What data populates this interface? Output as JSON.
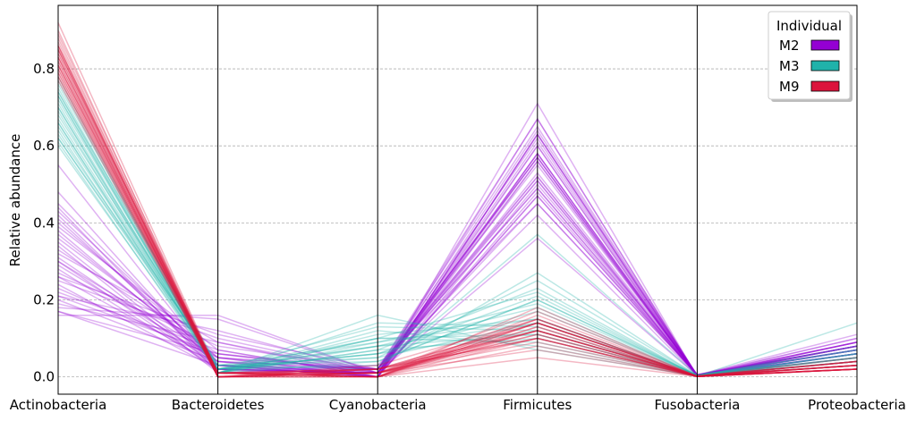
{
  "chart_data": {
    "type": "line",
    "subtype": "parallel-coordinates",
    "title": "",
    "xlabel": "",
    "ylabel": "Relative abundance",
    "categories": [
      "Actinobacteria",
      "Bacteroidetes",
      "Cyanobacteria",
      "Firmicutes",
      "Fusobacteria",
      "Proteobacteria"
    ],
    "y_ticks": [
      "0.0",
      "0.2",
      "0.4",
      "0.6",
      "0.8"
    ],
    "ylim": [
      -0.045,
      0.965
    ],
    "grid": "horizontal dashed",
    "legend": {
      "title": "Individual",
      "position": "top-right",
      "entries": [
        {
          "label": "M2",
          "color": "#9400d3"
        },
        {
          "label": "M3",
          "color": "#20b2aa"
        },
        {
          "label": "M9",
          "color": "#dc143c"
        }
      ]
    },
    "series": [
      {
        "name": "M2",
        "color": "#9400d3",
        "lines": [
          [
            0.45,
            0.03,
            0.01,
            0.45,
            0.005,
            0.06
          ],
          [
            0.42,
            0.02,
            0.02,
            0.49,
            0.003,
            0.05
          ],
          [
            0.4,
            0.05,
            0.0,
            0.5,
            0.005,
            0.05
          ],
          [
            0.38,
            0.03,
            0.01,
            0.52,
            0.002,
            0.06
          ],
          [
            0.37,
            0.04,
            0.02,
            0.51,
            0.004,
            0.06
          ],
          [
            0.35,
            0.02,
            0.0,
            0.56,
            0.003,
            0.07
          ],
          [
            0.33,
            0.06,
            0.01,
            0.53,
            0.006,
            0.07
          ],
          [
            0.31,
            0.03,
            0.02,
            0.57,
            0.002,
            0.07
          ],
          [
            0.3,
            0.05,
            0.0,
            0.58,
            0.004,
            0.06
          ],
          [
            0.28,
            0.02,
            0.01,
            0.61,
            0.003,
            0.08
          ],
          [
            0.27,
            0.08,
            0.02,
            0.55,
            0.005,
            0.08
          ],
          [
            0.26,
            0.03,
            0.0,
            0.63,
            0.002,
            0.08
          ],
          [
            0.25,
            0.1,
            0.01,
            0.56,
            0.004,
            0.08
          ],
          [
            0.23,
            0.05,
            0.02,
            0.62,
            0.003,
            0.08
          ],
          [
            0.22,
            0.07,
            0.0,
            0.63,
            0.005,
            0.08
          ],
          [
            0.21,
            0.12,
            0.01,
            0.58,
            0.002,
            0.08
          ],
          [
            0.2,
            0.04,
            0.02,
            0.65,
            0.004,
            0.09
          ],
          [
            0.19,
            0.09,
            0.0,
            0.63,
            0.003,
            0.09
          ],
          [
            0.18,
            0.15,
            0.01,
            0.57,
            0.005,
            0.09
          ],
          [
            0.17,
            0.06,
            0.02,
            0.67,
            0.002,
            0.09
          ],
          [
            0.17,
            0.03,
            0.0,
            0.71,
            0.001,
            0.09
          ],
          [
            0.16,
            0.16,
            0.01,
            0.58,
            0.004,
            0.1
          ],
          [
            0.48,
            0.02,
            0.01,
            0.42,
            0.003,
            0.07
          ],
          [
            0.44,
            0.01,
            0.03,
            0.45,
            0.006,
            0.07
          ],
          [
            0.39,
            0.07,
            0.0,
            0.47,
            0.004,
            0.07
          ],
          [
            0.34,
            0.01,
            0.02,
            0.57,
            0.002,
            0.06
          ],
          [
            0.32,
            0.09,
            0.01,
            0.51,
            0.005,
            0.07
          ],
          [
            0.29,
            0.04,
            0.0,
            0.6,
            0.003,
            0.07
          ],
          [
            0.24,
            0.02,
            0.01,
            0.67,
            0.002,
            0.06
          ],
          [
            0.36,
            0.05,
            0.02,
            0.49,
            0.004,
            0.08
          ],
          [
            0.41,
            0.03,
            0.0,
            0.48,
            0.003,
            0.08
          ],
          [
            0.21,
            0.06,
            0.01,
            0.64,
            0.004,
            0.1
          ],
          [
            0.26,
            0.11,
            0.02,
            0.52,
            0.005,
            0.11
          ],
          [
            0.3,
            0.02,
            0.01,
            0.6,
            0.002,
            0.08
          ],
          [
            0.55,
            0.02,
            0.01,
            0.36,
            0.003,
            0.06
          ],
          [
            0.43,
            0.04,
            0.0,
            0.47,
            0.004,
            0.06
          ]
        ]
      },
      {
        "name": "M3",
        "color": "#20b2aa",
        "lines": [
          [
            0.78,
            0.01,
            0.07,
            0.1,
            0.002,
            0.03
          ],
          [
            0.76,
            0.02,
            0.1,
            0.09,
            0.003,
            0.04
          ],
          [
            0.75,
            0.01,
            0.12,
            0.08,
            0.002,
            0.03
          ],
          [
            0.74,
            0.03,
            0.05,
            0.14,
            0.004,
            0.04
          ],
          [
            0.73,
            0.01,
            0.16,
            0.07,
            0.002,
            0.03
          ],
          [
            0.72,
            0.02,
            0.08,
            0.14,
            0.003,
            0.04
          ],
          [
            0.71,
            0.01,
            0.09,
            0.15,
            0.002,
            0.04
          ],
          [
            0.7,
            0.02,
            0.06,
            0.17,
            0.003,
            0.05
          ],
          [
            0.69,
            0.01,
            0.11,
            0.15,
            0.002,
            0.04
          ],
          [
            0.68,
            0.03,
            0.04,
            0.2,
            0.004,
            0.05
          ],
          [
            0.67,
            0.02,
            0.08,
            0.18,
            0.003,
            0.05
          ],
          [
            0.66,
            0.01,
            0.14,
            0.13,
            0.002,
            0.06
          ],
          [
            0.65,
            0.02,
            0.06,
            0.21,
            0.003,
            0.06
          ],
          [
            0.64,
            0.01,
            0.07,
            0.23,
            0.002,
            0.05
          ],
          [
            0.63,
            0.03,
            0.09,
            0.19,
            0.004,
            0.07
          ],
          [
            0.62,
            0.02,
            0.03,
            0.27,
            0.003,
            0.06
          ],
          [
            0.61,
            0.01,
            0.1,
            0.22,
            0.002,
            0.06
          ],
          [
            0.6,
            0.02,
            0.05,
            0.25,
            0.003,
            0.08
          ],
          [
            0.77,
            0.01,
            0.08,
            0.11,
            0.002,
            0.14
          ],
          [
            0.73,
            0.02,
            0.06,
            0.12,
            0.003,
            0.07
          ],
          [
            0.7,
            0.01,
            0.04,
            0.2,
            0.002,
            0.05
          ],
          [
            0.66,
            0.02,
            0.13,
            0.12,
            0.003,
            0.07
          ],
          [
            0.62,
            0.03,
            0.02,
            0.37,
            0.004,
            0.05
          ],
          [
            0.74,
            0.01,
            0.1,
            0.11,
            0.002,
            0.04
          ]
        ]
      },
      {
        "name": "M9",
        "color": "#dc143c",
        "lines": [
          [
            0.92,
            0.01,
            0.0,
            0.05,
            0.001,
            0.02
          ],
          [
            0.9,
            0.0,
            0.01,
            0.07,
            0.002,
            0.02
          ],
          [
            0.89,
            0.01,
            0.0,
            0.08,
            0.001,
            0.02
          ],
          [
            0.88,
            0.0,
            0.01,
            0.09,
            0.002,
            0.02
          ],
          [
            0.87,
            0.01,
            0.0,
            0.1,
            0.001,
            0.02
          ],
          [
            0.86,
            0.0,
            0.02,
            0.1,
            0.002,
            0.02
          ],
          [
            0.86,
            0.01,
            0.01,
            0.1,
            0.001,
            0.02
          ],
          [
            0.85,
            0.0,
            0.0,
            0.12,
            0.002,
            0.03
          ],
          [
            0.85,
            0.01,
            0.02,
            0.1,
            0.001,
            0.02
          ],
          [
            0.84,
            0.0,
            0.01,
            0.12,
            0.002,
            0.03
          ],
          [
            0.84,
            0.01,
            0.0,
            0.13,
            0.001,
            0.02
          ],
          [
            0.83,
            0.0,
            0.02,
            0.12,
            0.002,
            0.03
          ],
          [
            0.83,
            0.01,
            0.01,
            0.13,
            0.001,
            0.02
          ],
          [
            0.82,
            0.0,
            0.0,
            0.14,
            0.002,
            0.03
          ],
          [
            0.82,
            0.01,
            0.02,
            0.12,
            0.001,
            0.03
          ],
          [
            0.81,
            0.0,
            0.01,
            0.14,
            0.002,
            0.03
          ],
          [
            0.81,
            0.01,
            0.0,
            0.15,
            0.001,
            0.03
          ],
          [
            0.8,
            0.0,
            0.02,
            0.14,
            0.002,
            0.04
          ],
          [
            0.8,
            0.01,
            0.01,
            0.15,
            0.001,
            0.03
          ],
          [
            0.79,
            0.0,
            0.0,
            0.16,
            0.002,
            0.04
          ],
          [
            0.79,
            0.01,
            0.02,
            0.14,
            0.001,
            0.04
          ],
          [
            0.78,
            0.0,
            0.01,
            0.17,
            0.002,
            0.04
          ],
          [
            0.78,
            0.01,
            0.0,
            0.18,
            0.001,
            0.03
          ],
          [
            0.77,
            0.0,
            0.03,
            0.15,
            0.002,
            0.05
          ],
          [
            0.85,
            0.01,
            0.01,
            0.11,
            0.001,
            0.02
          ],
          [
            0.83,
            0.0,
            0.01,
            0.12,
            0.002,
            0.04
          ],
          [
            0.81,
            0.01,
            0.0,
            0.14,
            0.001,
            0.04
          ],
          [
            0.86,
            0.0,
            0.01,
            0.11,
            0.002,
            0.02
          ]
        ]
      }
    ]
  }
}
